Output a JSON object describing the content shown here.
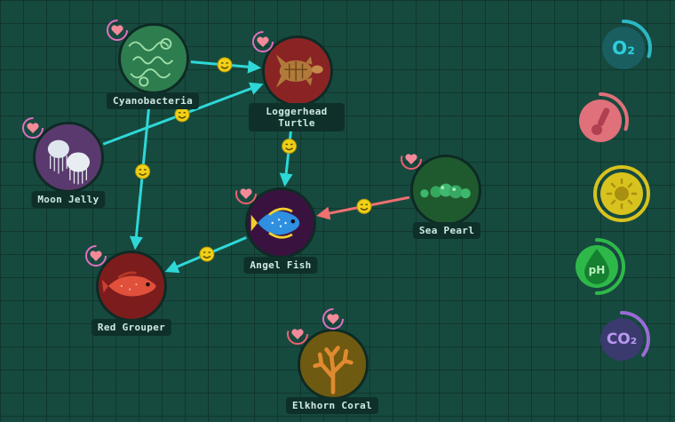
{
  "species": [
    {
      "id": "cyanobacteria",
      "label": "Cyanobacteria",
      "icon": "cyanobacteria-icon",
      "color": "#2e7d4f"
    },
    {
      "id": "loggerhead-turtle",
      "label": "Loggerhead Turtle",
      "icon": "turtle-icon",
      "color": "#8a2424"
    },
    {
      "id": "moon-jelly",
      "label": "Moon Jelly",
      "icon": "jellyfish-icon",
      "color": "#5a3a6e"
    },
    {
      "id": "sea-pearl",
      "label": "Sea Pearl",
      "icon": "sea-pearl-icon",
      "color": "#1f5a2e"
    },
    {
      "id": "angel-fish",
      "label": "Angel Fish",
      "icon": "angelfish-icon",
      "color": "#3a1240"
    },
    {
      "id": "red-grouper",
      "label": "Red Grouper",
      "icon": "grouper-icon",
      "color": "#7d1c1c"
    },
    {
      "id": "elkhorn-coral",
      "label": "Elkhorn Coral",
      "icon": "coral-icon",
      "color": "#6e5a10"
    }
  ],
  "links": [
    {
      "from": "cyanobacteria",
      "to": "loggerhead-turtle",
      "status_icon": "happy-face-icon"
    },
    {
      "from": "moon-jelly",
      "to": "loggerhead-turtle",
      "status_icon": "happy-face-icon"
    },
    {
      "from": "cyanobacteria",
      "to": "red-grouper",
      "status_icon": "happy-face-icon"
    },
    {
      "from": "loggerhead-turtle",
      "to": "angel-fish",
      "status_icon": "happy-face-icon"
    },
    {
      "from": "sea-pearl",
      "to": "angel-fish",
      "status_icon": "happy-face-icon"
    },
    {
      "from": "angel-fish",
      "to": "red-grouper",
      "status_icon": "happy-face-icon"
    }
  ],
  "meters": [
    {
      "id": "oxygen",
      "label": "O₂",
      "icon": "oxygen-icon",
      "color": "#2bb8c4",
      "level": 0.3
    },
    {
      "id": "temperature",
      "label": "",
      "icon": "thermometer-icon",
      "color": "#e0707a",
      "level": 0.3
    },
    {
      "id": "light",
      "label": "",
      "icon": "sun-icon",
      "color": "#d8c21e",
      "level": 1.0
    },
    {
      "id": "ph",
      "label": "pH",
      "icon": "ph-drop-icon",
      "color": "#2fb84a",
      "level": 0.5
    },
    {
      "id": "co2",
      "label": "CO₂",
      "icon": "co2-icon",
      "color": "#9b6ad6",
      "level": 0.35
    }
  ],
  "colors": {
    "link": "#2ed8d8",
    "stress_link": "#f07070",
    "heart": "#f28a9a",
    "background": "#174a3f"
  }
}
